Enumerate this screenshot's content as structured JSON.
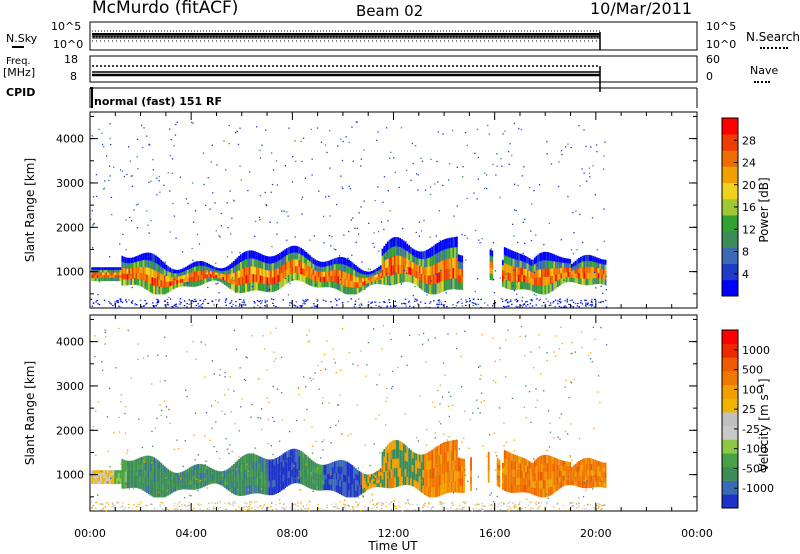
{
  "header": {
    "station": "McMurdo (fitACF)",
    "beam": "Beam 02",
    "date": "10/Mar/2011"
  },
  "top_panels": {
    "nsky_label": "N.Sky",
    "nsky_ticks": [
      "10^5",
      "10^0"
    ],
    "nsearch_label": "N.Search",
    "nsearch_ticks": [
      "10^5",
      "10^0"
    ],
    "freq_label": "Freq.",
    "freq_unit": "[MHz]",
    "freq_ticks": [
      "18",
      "8"
    ],
    "nave_label": "Nave",
    "nave_ticks": [
      "60",
      "0"
    ],
    "cpid_label": "CPID",
    "cpid_value": "normal (fast) 151 RF"
  },
  "chart_data": [
    {
      "type": "heatmap",
      "name": "power",
      "ylabel": "Slant Range [km]",
      "yticks": [
        "1000",
        "2000",
        "3000",
        "4000"
      ],
      "ylim": [
        180,
        4600
      ],
      "xlim": [
        0,
        24
      ],
      "colorbar": {
        "label": "Power [dB]",
        "ticks": [
          "28",
          "24",
          "20",
          "16",
          "12",
          "8",
          "4"
        ],
        "colors": [
          "#0000ff",
          "#1e3cc8",
          "#3a6ab4",
          "#3c8c5a",
          "#32a032",
          "#a0c832",
          "#f0d21e",
          "#f0a000",
          "#f06e00",
          "#f03c00",
          "#ff0000"
        ]
      }
    },
    {
      "type": "heatmap",
      "name": "velocity",
      "ylabel": "Slant Range [km]",
      "yticks": [
        "1000",
        "2000",
        "3000",
        "4000"
      ],
      "ylim": [
        180,
        4600
      ],
      "xlim": [
        0,
        24
      ],
      "xticks": [
        "00:00",
        "04:00",
        "08:00",
        "12:00",
        "16:00",
        "20:00",
        "00:00"
      ],
      "xlabel": "Time UT",
      "colorbar": {
        "label": "Velocity [m s⁻¹]",
        "ticks": [
          "1000",
          "500",
          "100",
          "25",
          "-25",
          "-100",
          "-500",
          "-1000"
        ],
        "colors": [
          "#1e32c8",
          "#3a6ab4",
          "#3c8c5a",
          "#46a046",
          "#8cc846",
          "#c8c8c8",
          "#c0c0c0",
          "#f0b400",
          "#f0a000",
          "#f07800",
          "#f05a00",
          "#f02800",
          "#ff0000"
        ]
      }
    }
  ]
}
